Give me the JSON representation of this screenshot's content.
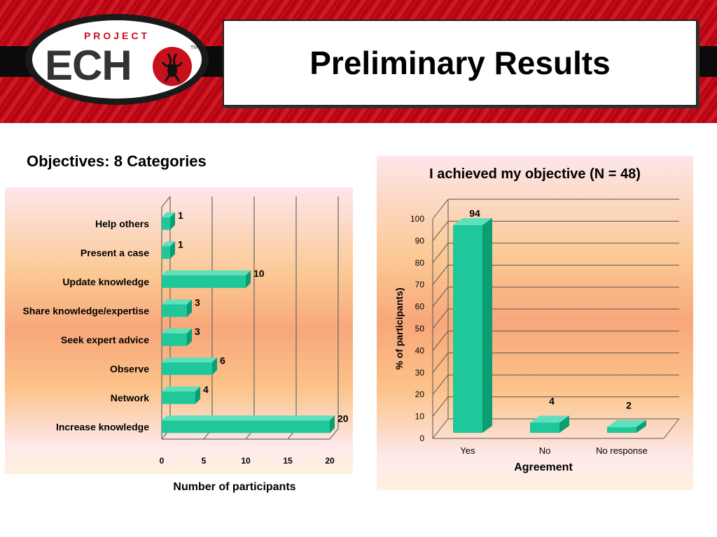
{
  "header": {
    "logo_project": "PROJECT",
    "logo_echo": "ECH",
    "logo_tm": "TM",
    "title": "Preliminary Results"
  },
  "colors": {
    "bar": "#1ec89a",
    "bar_side": "#0a9e72",
    "bar_top": "#5fe0bc",
    "brand_red": "#c8101c"
  },
  "left_heading": "Objectives: 8 Categories",
  "chart_data": [
    {
      "type": "bar",
      "orientation": "horizontal",
      "title": "",
      "categories": [
        "Help others",
        "Present a case",
        "Update knowledge",
        "Share knowledge/expertise",
        "Seek expert advice",
        "Observe",
        "Network",
        "Increase knowledge"
      ],
      "values": [
        1,
        1,
        10,
        3,
        3,
        6,
        4,
        20
      ],
      "xlabel": "Number of participants",
      "ylabel": "",
      "xlim": [
        0,
        20
      ],
      "xticks": [
        "0",
        "5",
        "10",
        "15",
        "20"
      ],
      "grid": true,
      "data_labels": true
    },
    {
      "type": "bar",
      "orientation": "vertical",
      "title": "I achieved my objective (N = 48)",
      "categories": [
        "Yes",
        "No",
        "No response"
      ],
      "values": [
        94,
        4,
        2
      ],
      "xlabel": "Agreement",
      "ylabel": "% of participants)",
      "ylim": [
        0,
        100
      ],
      "yticks": [
        "0",
        "10",
        "20",
        "30",
        "40",
        "50",
        "60",
        "70",
        "80",
        "90",
        "100"
      ],
      "grid": true,
      "data_labels": true
    }
  ]
}
